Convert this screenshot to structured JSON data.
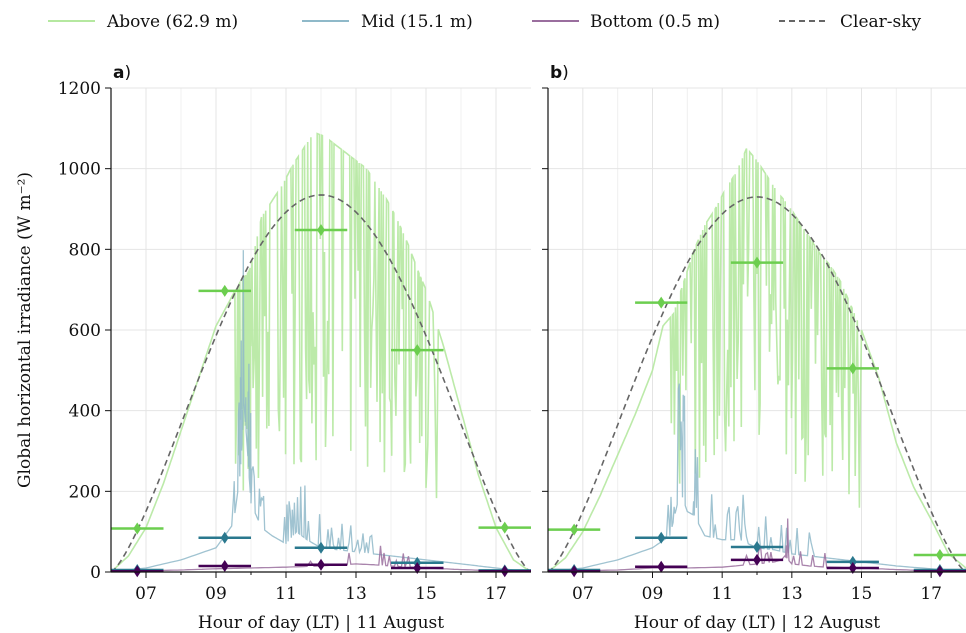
{
  "legend": [
    {
      "label": "Above (62.9 m)",
      "color": "#b5e8a0",
      "dash": "solid"
    },
    {
      "label": "Mid (15.1 m)",
      "color": "#8fb9c9",
      "dash": "solid"
    },
    {
      "label": "Bottom (0.5 m)",
      "color": "#9a6e9e",
      "dash": "solid"
    },
    {
      "label": "Clear-sky",
      "color": "#666666",
      "dash": "dashed"
    }
  ],
  "colors": {
    "above_raw": "#b5e8a0",
    "mid_raw": "#8fb9c9",
    "bottom_raw": "#9a6e9e",
    "above_mean": "#6cce4f",
    "mid_mean": "#2a788e",
    "bottom_mean": "#440154",
    "clearsky": "#666666"
  },
  "chart_data": [
    {
      "type": "line",
      "panel_letter": "a",
      "ylabel": "Global horizontal irradiance (W m⁻²)",
      "xlabel": "Hour of day (LT) | 11 August",
      "xlim": [
        6.0,
        18.0
      ],
      "ylim": [
        0,
        1200
      ],
      "x_ticks": [
        "07",
        "09",
        "11",
        "13",
        "15",
        "17"
      ],
      "x_tick_values": [
        7,
        9,
        11,
        13,
        15,
        17
      ],
      "y_ticks": [
        0,
        200,
        400,
        600,
        800,
        1000,
        1200
      ],
      "grid": true,
      "clearsky": {
        "sunrise": 6.0,
        "sunset": 18.0,
        "peak_x": 12.0,
        "peak": 935
      },
      "series": [
        {
          "name": "Above (62.9 m)",
          "kind": "raw",
          "x": [
            6.0,
            6.5,
            7.0,
            7.5,
            8.0,
            8.5,
            9.0,
            9.5,
            9.7,
            9.9,
            10.0,
            10.3,
            10.6,
            10.9,
            11.2,
            11.5,
            11.8,
            12.1,
            12.4,
            12.7,
            13.0,
            13.3,
            13.6,
            13.9,
            14.2,
            14.5,
            14.8,
            15.0,
            15.5,
            16.0,
            16.5,
            17.0,
            17.5,
            18.0
          ],
          "y": [
            0,
            40,
            110,
            220,
            350,
            480,
            610,
            690,
            720,
            740,
            760,
            880,
            920,
            960,
            1010,
            1050,
            1090,
            1080,
            1060,
            1040,
            1020,
            1000,
            960,
            920,
            870,
            810,
            740,
            700,
            560,
            400,
            240,
            110,
            30,
            0
          ]
        },
        {
          "name": "Mid (15.1 m)",
          "kind": "raw",
          "x": [
            6.0,
            7.0,
            8.0,
            9.0,
            9.5,
            9.7,
            9.8,
            9.9,
            10.0,
            10.3,
            10.6,
            11.0,
            11.3,
            11.6,
            12.0,
            12.5,
            13.0,
            13.5,
            14.0,
            14.5,
            15.0,
            15.5,
            16.0,
            16.5,
            17.0,
            17.5,
            18.0
          ],
          "y": [
            0,
            10,
            30,
            60,
            120,
            250,
            420,
            300,
            170,
            110,
            90,
            70,
            100,
            80,
            60,
            55,
            50,
            45,
            40,
            35,
            30,
            25,
            20,
            15,
            10,
            5,
            0
          ]
        },
        {
          "name": "Bottom (0.5 m)",
          "kind": "raw",
          "x": [
            6.0,
            7.0,
            8.0,
            9.0,
            10.0,
            11.0,
            12.0,
            12.5,
            13.0,
            13.5,
            14.0,
            14.5,
            15.0,
            16.0,
            17.0,
            18.0
          ],
          "y": [
            0,
            3,
            5,
            8,
            10,
            12,
            15,
            18,
            20,
            18,
            15,
            12,
            10,
            6,
            3,
            0
          ]
        }
      ],
      "hourly_means": {
        "Above (62.9 m)": [
          {
            "x": 6.75,
            "y": 108
          },
          {
            "x": 9.25,
            "y": 697
          },
          {
            "x": 12.0,
            "y": 848
          },
          {
            "x": 14.75,
            "y": 550
          },
          {
            "x": 17.25,
            "y": 110
          }
        ],
        "Mid (15.1 m)": [
          {
            "x": 6.75,
            "y": 5
          },
          {
            "x": 9.25,
            "y": 85
          },
          {
            "x": 12.0,
            "y": 60
          },
          {
            "x": 14.75,
            "y": 23
          },
          {
            "x": 17.25,
            "y": 4
          }
        ],
        "Bottom (0.5 m)": [
          {
            "x": 6.75,
            "y": 2
          },
          {
            "x": 9.25,
            "y": 15
          },
          {
            "x": 12.0,
            "y": 18
          },
          {
            "x": 14.75,
            "y": 10
          },
          {
            "x": 17.25,
            "y": 2
          }
        ]
      },
      "mean_halfwidth_h": 0.75
    },
    {
      "type": "line",
      "panel_letter": "b",
      "xlabel": "Hour of day (LT) | 12 August",
      "xlim": [
        6.0,
        18.0
      ],
      "ylim": [
        0,
        1200
      ],
      "x_ticks": [
        "07",
        "09",
        "11",
        "13",
        "15",
        "17"
      ],
      "x_tick_values": [
        7,
        9,
        11,
        13,
        15,
        17
      ],
      "y_ticks": [
        0,
        200,
        400,
        600,
        800,
        1000,
        1200
      ],
      "grid": true,
      "clearsky": {
        "sunrise": 6.0,
        "sunset": 18.0,
        "peak_x": 12.1,
        "peak": 930
      },
      "series": [
        {
          "name": "Above (62.9 m)",
          "kind": "raw",
          "x": [
            6.0,
            6.5,
            7.0,
            7.5,
            8.0,
            8.5,
            9.0,
            9.3,
            9.6,
            9.9,
            10.2,
            10.5,
            10.8,
            11.1,
            11.4,
            11.7,
            12.0,
            12.3,
            12.6,
            12.9,
            13.2,
            13.5,
            13.8,
            14.1,
            14.4,
            14.7,
            15.0,
            15.5,
            16.0,
            16.5,
            17.0,
            17.5,
            18.0
          ],
          "y": [
            0,
            35,
            100,
            190,
            290,
            390,
            500,
            610,
            640,
            720,
            800,
            860,
            900,
            950,
            990,
            1050,
            1020,
            980,
            940,
            910,
            870,
            830,
            790,
            760,
            720,
            660,
            600,
            480,
            320,
            210,
            130,
            45,
            10
          ]
        },
        {
          "name": "Mid (15.1 m)",
          "kind": "raw",
          "x": [
            6.0,
            7.0,
            8.0,
            9.0,
            9.5,
            9.8,
            10.0,
            10.2,
            10.5,
            11.0,
            11.5,
            12.0,
            12.5,
            13.0,
            13.5,
            14.0,
            14.5,
            15.0,
            15.5,
            16.0,
            17.0,
            18.0
          ],
          "y": [
            0,
            10,
            30,
            60,
            90,
            200,
            150,
            140,
            90,
            80,
            80,
            60,
            55,
            45,
            40,
            35,
            30,
            25,
            20,
            15,
            8,
            0
          ]
        },
        {
          "name": "Bottom (0.5 m)",
          "kind": "raw",
          "x": [
            6.0,
            7.0,
            8.0,
            9.0,
            10.0,
            11.0,
            12.0,
            12.5,
            12.7,
            12.8,
            13.0,
            13.5,
            14.0,
            15.0,
            16.0,
            17.0,
            18.0
          ],
          "y": [
            0,
            3,
            5,
            10,
            10,
            12,
            20,
            25,
            30,
            40,
            20,
            15,
            12,
            10,
            6,
            3,
            0
          ]
        }
      ],
      "hourly_means": {
        "Above (62.9 m)": [
          {
            "x": 6.75,
            "y": 105
          },
          {
            "x": 9.25,
            "y": 668
          },
          {
            "x": 12.0,
            "y": 767
          },
          {
            "x": 14.75,
            "y": 505
          },
          {
            "x": 17.25,
            "y": 42
          }
        ],
        "Mid (15.1 m)": [
          {
            "x": 6.75,
            "y": 5
          },
          {
            "x": 9.25,
            "y": 85
          },
          {
            "x": 12.0,
            "y": 62
          },
          {
            "x": 14.75,
            "y": 25
          },
          {
            "x": 17.25,
            "y": 5
          }
        ],
        "Bottom (0.5 m)": [
          {
            "x": 6.75,
            "y": 2
          },
          {
            "x": 9.25,
            "y": 13
          },
          {
            "x": 12.0,
            "y": 30
          },
          {
            "x": 14.75,
            "y": 10
          },
          {
            "x": 17.25,
            "y": 2
          }
        ]
      },
      "mean_halfwidth_h": 0.75
    }
  ]
}
